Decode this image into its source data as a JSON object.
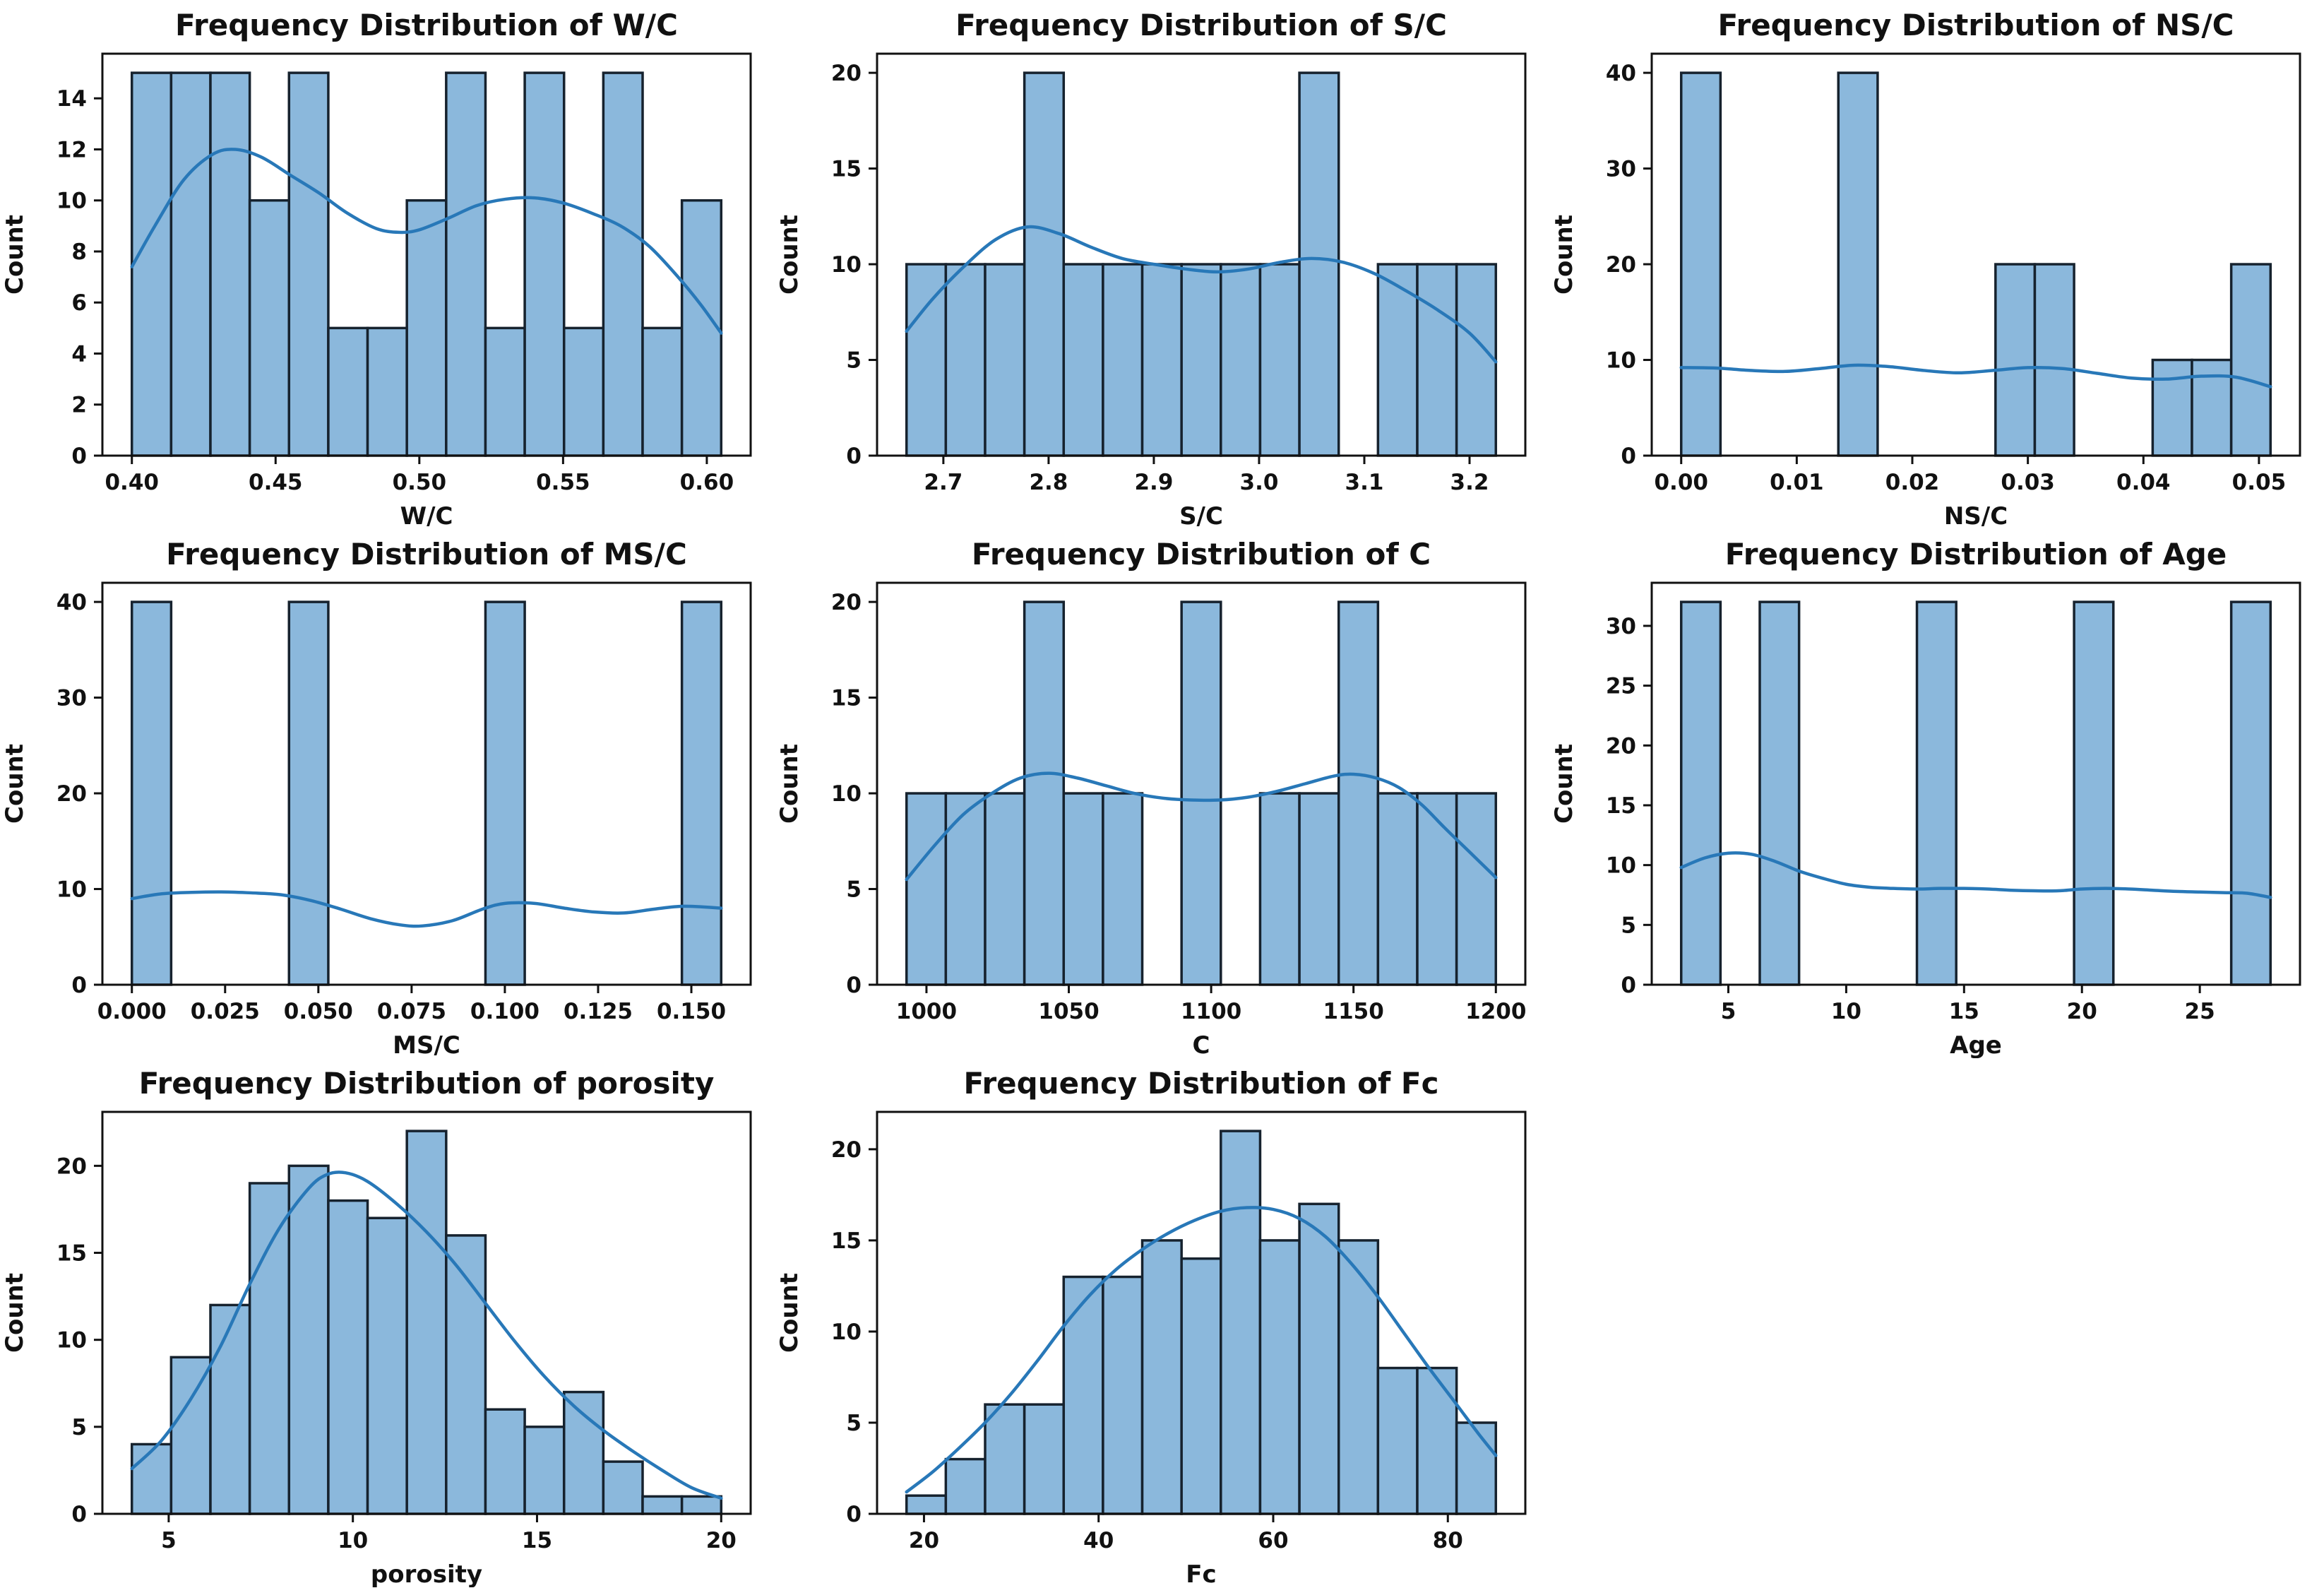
{
  "figure": {
    "background": "#ffffff",
    "grid": false,
    "legend": "none",
    "rows": 3,
    "cols": 3,
    "shared_ylabel": "Count"
  },
  "style": {
    "bar_fill": "#8bb8dc",
    "bar_edge": "#16222e",
    "kde_color": "#2878b8",
    "axis_color": "#111111",
    "background": "#ffffff"
  },
  "chart_data": [
    {
      "id": "wc",
      "type": "bar",
      "title": "Frequency Distribution of W/C",
      "xlabel": "W/C",
      "ylabel": "Count",
      "bin_start": 0.4,
      "bin_width": 0.0136667,
      "counts": [
        15,
        15,
        15,
        10,
        15,
        5,
        5,
        10,
        15,
        5,
        15,
        5,
        15,
        5,
        10
      ],
      "xlim": [
        0.38975,
        0.61525
      ],
      "ylim": [
        0,
        15.75
      ],
      "xticks": [
        0.4,
        0.45,
        0.5,
        0.55,
        0.6
      ],
      "xtick_labels": [
        "0.40",
        "0.45",
        "0.50",
        "0.55",
        "0.60"
      ],
      "yticks": [
        0,
        2,
        4,
        6,
        8,
        10,
        12,
        14
      ],
      "ytick_labels": [
        "0",
        "2",
        "4",
        "6",
        "8",
        "10",
        "12",
        "14"
      ],
      "kde": [
        [
          0.4,
          7.4
        ],
        [
          0.408,
          9.0
        ],
        [
          0.418,
          10.8
        ],
        [
          0.428,
          11.8
        ],
        [
          0.436,
          12.0
        ],
        [
          0.445,
          11.7
        ],
        [
          0.455,
          11.0
        ],
        [
          0.465,
          10.3
        ],
        [
          0.475,
          9.5
        ],
        [
          0.485,
          8.9
        ],
        [
          0.493,
          8.75
        ],
        [
          0.5,
          8.85
        ],
        [
          0.51,
          9.3
        ],
        [
          0.52,
          9.8
        ],
        [
          0.53,
          10.05
        ],
        [
          0.54,
          10.1
        ],
        [
          0.55,
          9.9
        ],
        [
          0.56,
          9.5
        ],
        [
          0.57,
          9.0
        ],
        [
          0.58,
          8.2
        ],
        [
          0.59,
          7.0
        ],
        [
          0.598,
          5.9
        ],
        [
          0.605,
          4.8
        ]
      ]
    },
    {
      "id": "sc",
      "type": "bar",
      "title": "Frequency Distribution of S/C",
      "xlabel": "S/C",
      "ylabel": "Count",
      "bin_start": 2.665,
      "bin_width": 0.0373333,
      "counts": [
        10,
        10,
        10,
        20,
        10,
        10,
        10,
        10,
        10,
        10,
        20,
        0,
        10,
        10,
        10
      ],
      "xlim": [
        2.637,
        3.253
      ],
      "ylim": [
        0,
        21
      ],
      "xticks": [
        2.7,
        2.8,
        2.9,
        3.0,
        3.1,
        3.2
      ],
      "xtick_labels": [
        "2.7",
        "2.8",
        "2.9",
        "3.0",
        "3.1",
        "3.2"
      ],
      "yticks": [
        0,
        5,
        10,
        15,
        20
      ],
      "ytick_labels": [
        "0",
        "5",
        "10",
        "15",
        "20"
      ],
      "kde": [
        [
          2.665,
          6.5
        ],
        [
          2.69,
          8.2
        ],
        [
          2.72,
          9.9
        ],
        [
          2.75,
          11.3
        ],
        [
          2.78,
          11.95
        ],
        [
          2.81,
          11.6
        ],
        [
          2.84,
          10.9
        ],
        [
          2.87,
          10.3
        ],
        [
          2.9,
          10.0
        ],
        [
          2.93,
          9.75
        ],
        [
          2.96,
          9.6
        ],
        [
          2.99,
          9.75
        ],
        [
          3.02,
          10.1
        ],
        [
          3.05,
          10.3
        ],
        [
          3.08,
          10.1
        ],
        [
          3.11,
          9.5
        ],
        [
          3.14,
          8.6
        ],
        [
          3.17,
          7.6
        ],
        [
          3.2,
          6.4
        ],
        [
          3.225,
          4.9
        ]
      ]
    },
    {
      "id": "nsc",
      "type": "bar",
      "title": "Frequency Distribution of NS/C",
      "xlabel": "NS/C",
      "ylabel": "Count",
      "bin_start": 0.0,
      "bin_width": 0.0034,
      "counts": [
        40,
        0,
        0,
        0,
        40,
        0,
        0,
        0,
        20,
        20,
        0,
        0,
        10,
        10,
        20
      ],
      "xlim": [
        -0.00255,
        0.05355
      ],
      "ylim": [
        0,
        42
      ],
      "xticks": [
        0.0,
        0.01,
        0.02,
        0.03,
        0.04,
        0.05
      ],
      "xtick_labels": [
        "0.00",
        "0.01",
        "0.02",
        "0.03",
        "0.04",
        "0.05"
      ],
      "yticks": [
        0,
        10,
        20,
        30,
        40
      ],
      "ytick_labels": [
        "0",
        "10",
        "20",
        "30",
        "40"
      ],
      "kde": [
        [
          0.0,
          9.2
        ],
        [
          0.003,
          9.15
        ],
        [
          0.006,
          8.9
        ],
        [
          0.009,
          8.8
        ],
        [
          0.012,
          9.1
        ],
        [
          0.015,
          9.45
        ],
        [
          0.018,
          9.3
        ],
        [
          0.021,
          8.9
        ],
        [
          0.024,
          8.65
        ],
        [
          0.027,
          8.9
        ],
        [
          0.03,
          9.2
        ],
        [
          0.033,
          9.1
        ],
        [
          0.036,
          8.6
        ],
        [
          0.039,
          8.1
        ],
        [
          0.042,
          8.0
        ],
        [
          0.045,
          8.3
        ],
        [
          0.048,
          8.2
        ],
        [
          0.051,
          7.2
        ]
      ]
    },
    {
      "id": "msc",
      "type": "bar",
      "title": "Frequency Distribution of MS/C",
      "xlabel": "MS/C",
      "ylabel": "Count",
      "bin_start": 0.0,
      "bin_width": 0.0105333,
      "counts": [
        40,
        0,
        0,
        0,
        40,
        0,
        0,
        0,
        0,
        40,
        0,
        0,
        0,
        0,
        40
      ],
      "xlim": [
        -0.0079,
        0.1659
      ],
      "ylim": [
        0,
        42
      ],
      "xticks": [
        0.0,
        0.025,
        0.05,
        0.075,
        0.1,
        0.125,
        0.15
      ],
      "xtick_labels": [
        "0.000",
        "0.025",
        "0.050",
        "0.075",
        "0.100",
        "0.125",
        "0.150"
      ],
      "yticks": [
        0,
        10,
        20,
        30,
        40
      ],
      "ytick_labels": [
        "0",
        "10",
        "20",
        "30",
        "40"
      ],
      "kde": [
        [
          0.0,
          9.0
        ],
        [
          0.008,
          9.5
        ],
        [
          0.016,
          9.65
        ],
        [
          0.024,
          9.7
        ],
        [
          0.032,
          9.6
        ],
        [
          0.04,
          9.4
        ],
        [
          0.048,
          8.8
        ],
        [
          0.056,
          7.9
        ],
        [
          0.064,
          6.9
        ],
        [
          0.072,
          6.25
        ],
        [
          0.078,
          6.15
        ],
        [
          0.086,
          6.7
        ],
        [
          0.094,
          7.9
        ],
        [
          0.1,
          8.5
        ],
        [
          0.108,
          8.5
        ],
        [
          0.116,
          8.0
        ],
        [
          0.124,
          7.6
        ],
        [
          0.132,
          7.5
        ],
        [
          0.14,
          7.9
        ],
        [
          0.148,
          8.2
        ],
        [
          0.158,
          8.0
        ]
      ]
    },
    {
      "id": "c",
      "type": "bar",
      "title": "Frequency Distribution of C",
      "xlabel": "C",
      "ylabel": "Count",
      "bin_start": 993,
      "bin_width": 13.8,
      "counts": [
        10,
        10,
        10,
        20,
        10,
        10,
        0,
        20,
        0,
        10,
        10,
        20,
        10,
        10,
        10
      ],
      "xlim": [
        982.65,
        1210.35
      ],
      "ylim": [
        0,
        21
      ],
      "xticks": [
        1000,
        1050,
        1100,
        1150,
        1200
      ],
      "xtick_labels": [
        "1000",
        "1050",
        "1100",
        "1150",
        "1200"
      ],
      "yticks": [
        0,
        5,
        10,
        15,
        20
      ],
      "ytick_labels": [
        "0",
        "5",
        "10",
        "15",
        "20"
      ],
      "kde": [
        [
          993,
          5.5
        ],
        [
          1003,
          7.3
        ],
        [
          1013,
          8.9
        ],
        [
          1023,
          10.0
        ],
        [
          1033,
          10.8
        ],
        [
          1043,
          11.05
        ],
        [
          1053,
          10.8
        ],
        [
          1063,
          10.4
        ],
        [
          1073,
          10.0
        ],
        [
          1083,
          9.75
        ],
        [
          1093,
          9.65
        ],
        [
          1103,
          9.65
        ],
        [
          1113,
          9.8
        ],
        [
          1123,
          10.1
        ],
        [
          1133,
          10.5
        ],
        [
          1143,
          10.9
        ],
        [
          1150,
          11.0
        ],
        [
          1158,
          10.8
        ],
        [
          1166,
          10.3
        ],
        [
          1174,
          9.4
        ],
        [
          1182,
          8.2
        ],
        [
          1191,
          6.9
        ],
        [
          1200,
          5.6
        ]
      ]
    },
    {
      "id": "age",
      "type": "bar",
      "title": "Frequency Distribution of Age",
      "xlabel": "Age",
      "ylabel": "Count",
      "bin_start": 3,
      "bin_width": 1.6666667,
      "counts": [
        32,
        0,
        32,
        0,
        0,
        0,
        32,
        0,
        0,
        0,
        32,
        0,
        0,
        0,
        32
      ],
      "xlim": [
        1.75,
        29.25
      ],
      "ylim": [
        0,
        33.6
      ],
      "xticks": [
        5,
        10,
        15,
        20,
        25
      ],
      "xtick_labels": [
        "5",
        "10",
        "15",
        "20",
        "25"
      ],
      "yticks": [
        0,
        5,
        10,
        15,
        20,
        25,
        30
      ],
      "ytick_labels": [
        "0",
        "5",
        "10",
        "15",
        "20",
        "25",
        "30"
      ],
      "kde": [
        [
          3,
          9.8
        ],
        [
          4,
          10.6
        ],
        [
          5,
          11.0
        ],
        [
          6,
          10.9
        ],
        [
          7,
          10.3
        ],
        [
          8,
          9.5
        ],
        [
          9,
          8.9
        ],
        [
          10,
          8.4
        ],
        [
          11,
          8.15
        ],
        [
          12,
          8.05
        ],
        [
          13,
          8.0
        ],
        [
          14,
          8.05
        ],
        [
          15,
          8.05
        ],
        [
          16,
          8.0
        ],
        [
          17,
          7.9
        ],
        [
          18,
          7.85
        ],
        [
          19,
          7.85
        ],
        [
          20,
          8.0
        ],
        [
          21,
          8.05
        ],
        [
          22,
          8.0
        ],
        [
          23,
          7.9
        ],
        [
          24,
          7.8
        ],
        [
          25,
          7.75
        ],
        [
          26,
          7.7
        ],
        [
          27,
          7.65
        ],
        [
          28,
          7.3
        ]
      ]
    },
    {
      "id": "porosity",
      "type": "bar",
      "title": "Frequency Distribution of porosity",
      "xlabel": "porosity",
      "ylabel": "Count",
      "bin_start": 4.0,
      "bin_width": 1.0666667,
      "counts": [
        4,
        9,
        12,
        19,
        20,
        18,
        17,
        22,
        16,
        6,
        5,
        7,
        3,
        1,
        1
      ],
      "xlim": [
        3.2,
        20.8
      ],
      "ylim": [
        0,
        23.1
      ],
      "xticks": [
        5,
        10,
        15,
        20
      ],
      "xtick_labels": [
        "5",
        "10",
        "15",
        "20"
      ],
      "yticks": [
        0,
        5,
        10,
        15,
        20
      ],
      "ytick_labels": [
        "0",
        "5",
        "10",
        "15",
        "20"
      ],
      "kde": [
        [
          4.0,
          2.6
        ],
        [
          4.8,
          4.2
        ],
        [
          5.6,
          6.6
        ],
        [
          6.4,
          9.6
        ],
        [
          7.2,
          13.2
        ],
        [
          8.0,
          16.4
        ],
        [
          8.8,
          18.7
        ],
        [
          9.3,
          19.5
        ],
        [
          9.8,
          19.6
        ],
        [
          10.4,
          19.1
        ],
        [
          11.2,
          17.8
        ],
        [
          12.0,
          16.2
        ],
        [
          12.8,
          14.3
        ],
        [
          13.6,
          12.1
        ],
        [
          14.4,
          9.9
        ],
        [
          15.2,
          7.9
        ],
        [
          16.0,
          6.2
        ],
        [
          16.8,
          4.8
        ],
        [
          17.6,
          3.6
        ],
        [
          18.4,
          2.5
        ],
        [
          19.2,
          1.5
        ],
        [
          20.0,
          0.9
        ]
      ]
    },
    {
      "id": "fc",
      "type": "bar",
      "title": "Frequency Distribution of Fc",
      "xlabel": "Fc",
      "ylabel": "Count",
      "bin_start": 18,
      "bin_width": 4.5,
      "counts": [
        1,
        3,
        6,
        6,
        13,
        13,
        15,
        14,
        21,
        15,
        17,
        15,
        8,
        8,
        5
      ],
      "xlim": [
        14.625,
        88.875
      ],
      "ylim": [
        0,
        22.05
      ],
      "xticks": [
        20,
        40,
        60,
        80
      ],
      "xtick_labels": [
        "20",
        "40",
        "60",
        "80"
      ],
      "yticks": [
        0,
        5,
        10,
        15,
        20
      ],
      "ytick_labels": [
        "0",
        "5",
        "10",
        "15",
        "20"
      ],
      "kde": [
        [
          18,
          1.2
        ],
        [
          21,
          2.3
        ],
        [
          24,
          3.6
        ],
        [
          27,
          5.0
        ],
        [
          30,
          6.6
        ],
        [
          33,
          8.4
        ],
        [
          36,
          10.3
        ],
        [
          39,
          12.0
        ],
        [
          42,
          13.4
        ],
        [
          45,
          14.5
        ],
        [
          48,
          15.4
        ],
        [
          51,
          16.1
        ],
        [
          54,
          16.6
        ],
        [
          57,
          16.8
        ],
        [
          60,
          16.7
        ],
        [
          63,
          16.2
        ],
        [
          66,
          15.2
        ],
        [
          69,
          13.7
        ],
        [
          72,
          11.9
        ],
        [
          75,
          9.9
        ],
        [
          78,
          7.9
        ],
        [
          81,
          6.0
        ],
        [
          83.5,
          4.4
        ],
        [
          85.5,
          3.2
        ]
      ]
    }
  ]
}
